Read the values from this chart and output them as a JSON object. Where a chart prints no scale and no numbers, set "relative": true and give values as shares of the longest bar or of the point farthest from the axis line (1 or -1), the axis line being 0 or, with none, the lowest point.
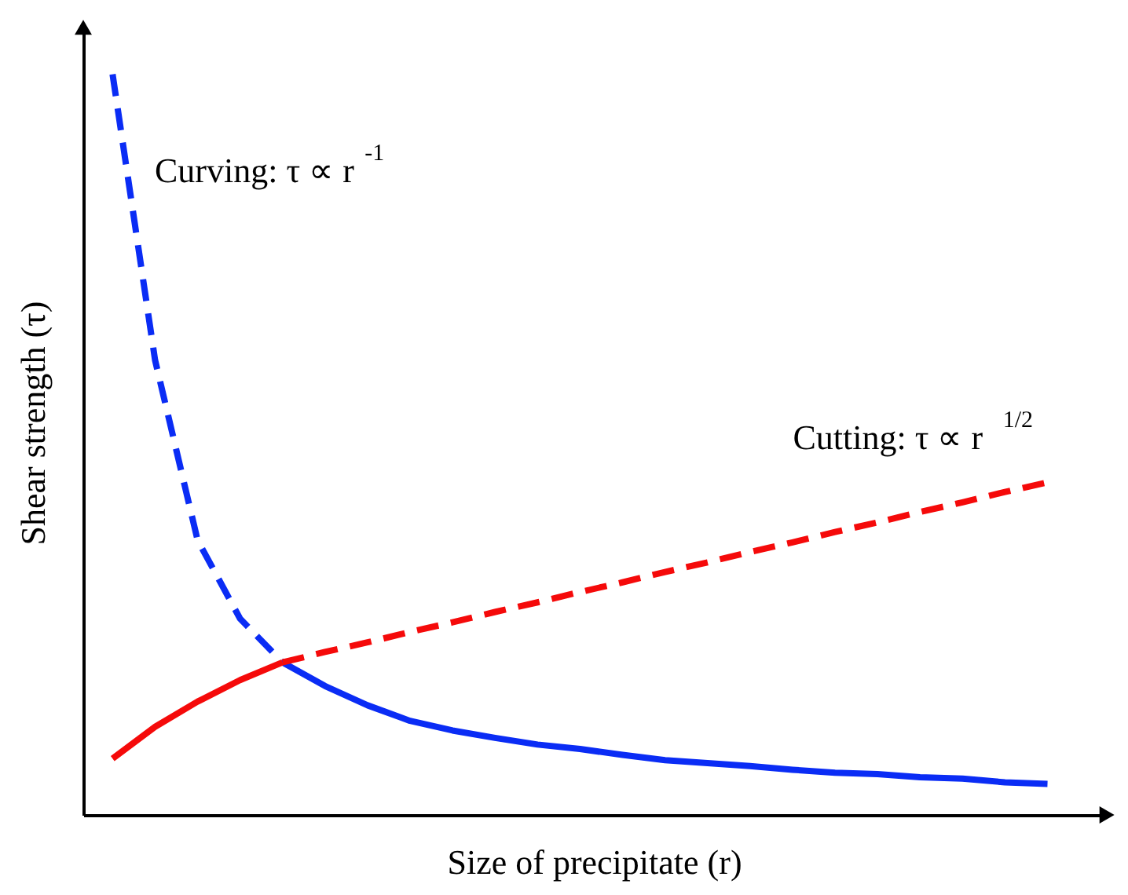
{
  "chart_data": {
    "type": "line",
    "relative": true,
    "xlabel": "Size of precipitate (r)",
    "ylabel": "Shear strength (τ)",
    "tick_labels": false,
    "grid": false,
    "categories": [
      null,
      null,
      null,
      null,
      null,
      null,
      null,
      null,
      null,
      null,
      null,
      null,
      null,
      null,
      null,
      null,
      null,
      null,
      null,
      null,
      null,
      null,
      null
    ],
    "series": [
      {
        "color": "#0a2cf5",
        "line_style": "dashed",
        "values": [
          1,
          0.614,
          0.371,
          0.265,
          0.206,
          null,
          null,
          null,
          null,
          null,
          null,
          null,
          null,
          null,
          null,
          null,
          null,
          null,
          null,
          null,
          null,
          null,
          null
        ]
      },
      {
        "color": "#0a2cf5",
        "line_style": "solid",
        "values": [
          null,
          null,
          null,
          null,
          0.206,
          0.174,
          0.148,
          0.127,
          0.114,
          0.104,
          0.095,
          0.089,
          0.081,
          0.074,
          0.07,
          0.066,
          0.061,
          0.057,
          0.055,
          0.051,
          0.049,
          0.044,
          0.042
        ]
      },
      {
        "color": "#f50a0a",
        "line_style": "solid",
        "values": [
          0.076,
          0.119,
          0.153,
          0.182,
          0.206,
          null,
          null,
          null,
          null,
          null,
          null,
          null,
          null,
          null,
          null,
          null,
          null,
          null,
          null,
          null,
          null,
          null,
          null
        ]
      },
      {
        "color": "#f50a0a",
        "line_style": "dashed",
        "values": [
          null,
          null,
          null,
          null,
          0.206,
          0.22,
          0.233,
          0.247,
          0.26,
          0.274,
          0.287,
          0.301,
          0.314,
          0.328,
          0.341,
          0.355,
          0.368,
          0.382,
          0.395,
          0.409,
          0.422,
          0.436,
          0.449
        ]
      }
    ],
    "annotations": [
      "Curving: τ ∝ r$^{-1}$",
      "Cutting: τ ∝ r$^{1/2}$"
    ]
  }
}
